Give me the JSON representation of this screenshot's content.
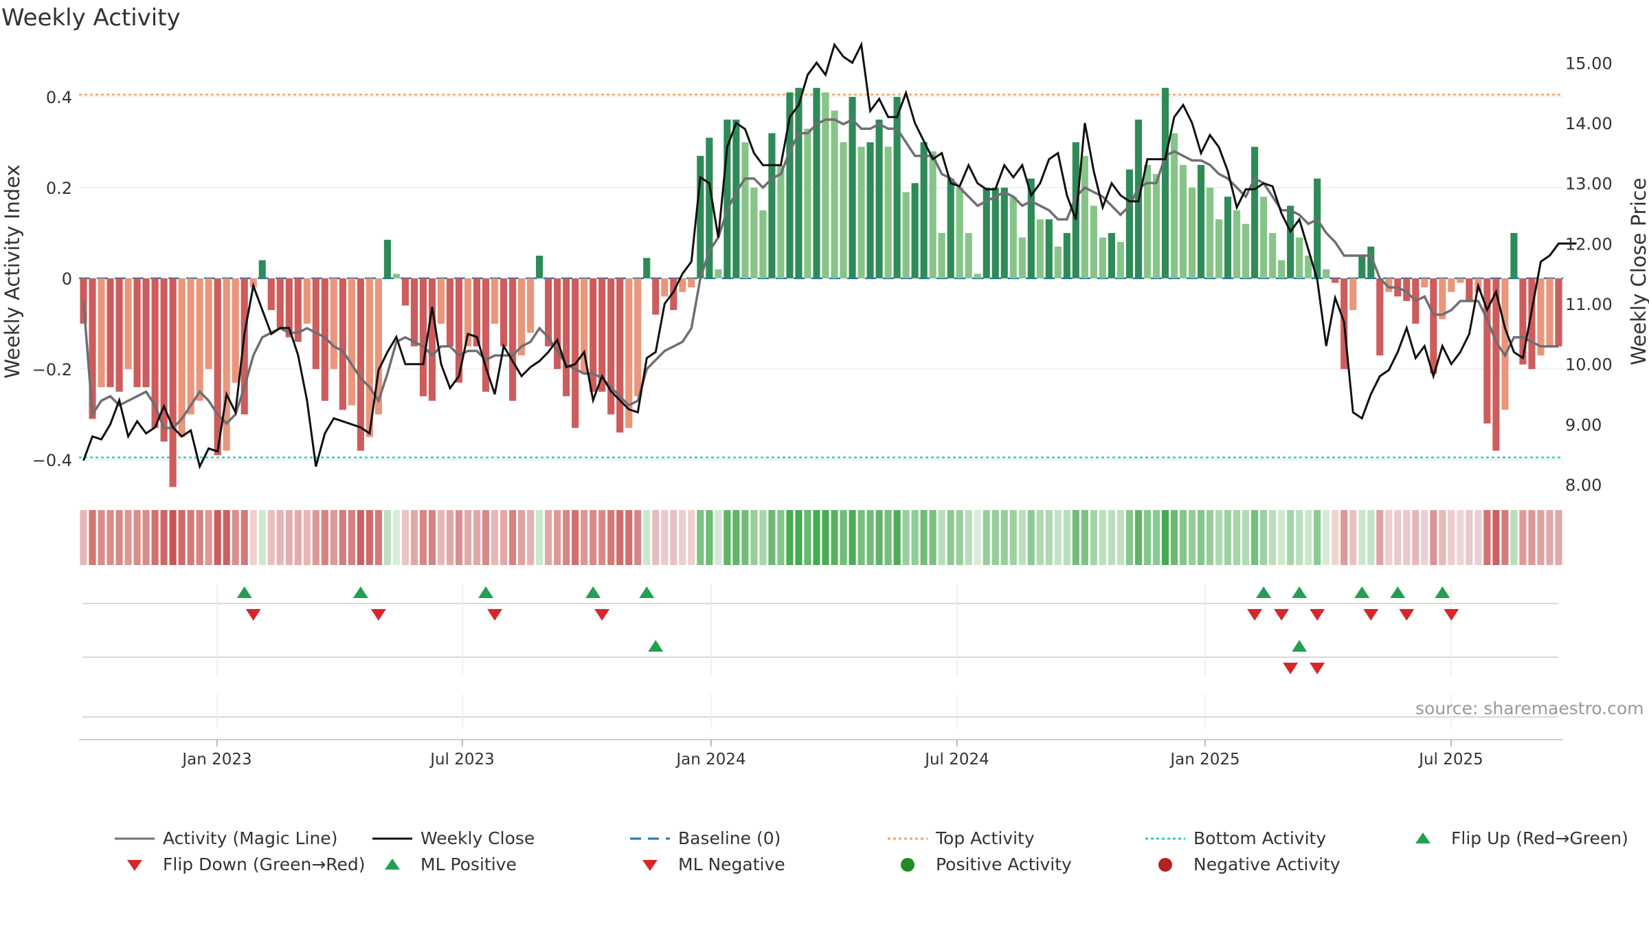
{
  "title": "Weekly Activity",
  "source": "source: sharemaestro.com",
  "colors": {
    "pos_dark": "#2e8b57",
    "pos_light": "#86c487",
    "neg_dark": "#cd5c5c",
    "neg_light": "#e9967a",
    "magic_line": "#6e6e74",
    "close": "#111111",
    "baseline": "#1f77b4",
    "top": "#f0a060",
    "bottom": "#30c9c4",
    "flip_up": "#22a050",
    "flip_down": "#d62728"
  },
  "chart_data": {
    "type": "bar",
    "x_label_ticks": [
      "Jan 2023",
      "Jul 2023",
      "Jan 2024",
      "Jul 2024",
      "Jan 2025",
      "Jul 2025"
    ],
    "y_left": {
      "label": "Weekly Activity Index",
      "ticks": [
        "0.4",
        "0.2",
        "0",
        "−0.2",
        "−0.4"
      ],
      "range": [
        -0.47,
        0.5
      ]
    },
    "y_right": {
      "label": "Weekly Close Price",
      "ticks": [
        "15.00",
        "14.00",
        "13.00",
        "12.00",
        "11.00",
        "10.00",
        "9.00",
        "8.00"
      ],
      "range": [
        8.0,
        15.3
      ]
    },
    "top_activity": 0.405,
    "bottom_activity": -0.395,
    "activity": [
      -0.1,
      -0.31,
      -0.24,
      -0.24,
      -0.25,
      -0.2,
      -0.24,
      -0.24,
      -0.33,
      -0.36,
      -0.46,
      -0.35,
      -0.3,
      -0.27,
      -0.2,
      -0.39,
      -0.38,
      -0.23,
      -0.3,
      -0.02,
      0.04,
      -0.07,
      -0.11,
      -0.13,
      -0.14,
      -0.1,
      -0.2,
      -0.27,
      -0.2,
      -0.29,
      -0.28,
      -0.38,
      -0.35,
      -0.3,
      0.085,
      0.01,
      -0.06,
      -0.15,
      -0.26,
      -0.27,
      -0.1,
      -0.15,
      -0.23,
      -0.15,
      -0.15,
      -0.25,
      -0.1,
      -0.15,
      -0.27,
      -0.17,
      -0.12,
      0.05,
      -0.15,
      -0.2,
      -0.26,
      -0.33,
      -0.21,
      -0.25,
      -0.25,
      -0.3,
      -0.34,
      -0.33,
      -0.26,
      0.045,
      -0.08,
      -0.04,
      -0.07,
      -0.03,
      -0.02,
      0.27,
      0.31,
      0.02,
      0.35,
      0.35,
      0.3,
      0.2,
      0.15,
      0.32,
      0.25,
      0.41,
      0.42,
      0.33,
      0.42,
      0.41,
      0.37,
      0.3,
      0.4,
      0.29,
      0.3,
      0.35,
      0.29,
      0.4,
      0.19,
      0.21,
      0.3,
      0.28,
      0.1,
      0.22,
      0.2,
      0.1,
      0.01,
      0.2,
      0.2,
      0.2,
      0.18,
      0.09,
      0.22,
      0.13,
      0.13,
      0.07,
      0.1,
      0.3,
      0.27,
      0.16,
      0.09,
      0.1,
      0.08,
      0.24,
      0.35,
      0.25,
      0.23,
      0.42,
      0.32,
      0.25,
      0.2,
      0.25,
      0.2,
      0.13,
      0.18,
      0.15,
      0.12,
      0.29,
      0.18,
      0.1,
      0.04,
      0.16,
      0.09,
      0.05,
      0.22,
      0.02,
      -0.01,
      -0.2,
      -0.07,
      0.05,
      0.07,
      -0.17,
      -0.03,
      -0.04,
      -0.05,
      -0.1,
      -0.02,
      -0.21,
      -0.09,
      -0.03,
      -0.01,
      -0.05,
      -0.03,
      -0.32,
      -0.38,
      -0.29,
      0.1,
      -0.19,
      -0.2,
      -0.17,
      -0.15,
      -0.15
    ],
    "magic_line": [
      -0.05,
      -0.3,
      -0.27,
      -0.26,
      -0.28,
      -0.27,
      -0.26,
      -0.25,
      -0.28,
      -0.33,
      -0.33,
      -0.31,
      -0.28,
      -0.25,
      -0.27,
      -0.3,
      -0.32,
      -0.3,
      -0.24,
      -0.17,
      -0.13,
      -0.12,
      -0.11,
      -0.12,
      -0.12,
      -0.11,
      -0.12,
      -0.13,
      -0.15,
      -0.16,
      -0.19,
      -0.22,
      -0.24,
      -0.27,
      -0.21,
      -0.14,
      -0.13,
      -0.14,
      -0.15,
      -0.17,
      -0.15,
      -0.15,
      -0.17,
      -0.16,
      -0.16,
      -0.18,
      -0.17,
      -0.17,
      -0.17,
      -0.15,
      -0.14,
      -0.11,
      -0.13,
      -0.16,
      -0.19,
      -0.2,
      -0.21,
      -0.21,
      -0.22,
      -0.24,
      -0.26,
      -0.28,
      -0.27,
      -0.2,
      -0.18,
      -0.16,
      -0.15,
      -0.14,
      -0.11,
      0.0,
      0.06,
      0.09,
      0.15,
      0.19,
      0.22,
      0.22,
      0.2,
      0.22,
      0.23,
      0.28,
      0.32,
      0.32,
      0.34,
      0.35,
      0.35,
      0.34,
      0.35,
      0.33,
      0.33,
      0.34,
      0.33,
      0.33,
      0.3,
      0.27,
      0.27,
      0.27,
      0.23,
      0.22,
      0.2,
      0.18,
      0.16,
      0.17,
      0.18,
      0.19,
      0.18,
      0.16,
      0.17,
      0.16,
      0.15,
      0.13,
      0.13,
      0.18,
      0.2,
      0.19,
      0.18,
      0.16,
      0.14,
      0.16,
      0.2,
      0.21,
      0.21,
      0.27,
      0.28,
      0.27,
      0.26,
      0.26,
      0.25,
      0.23,
      0.22,
      0.2,
      0.18,
      0.22,
      0.21,
      0.18,
      0.15,
      0.15,
      0.14,
      0.12,
      0.13,
      0.1,
      0.08,
      0.05,
      0.05,
      0.05,
      0.05,
      0.0,
      -0.02,
      -0.02,
      -0.03,
      -0.05,
      -0.04,
      -0.08,
      -0.08,
      -0.07,
      -0.05,
      -0.05,
      -0.05,
      -0.09,
      -0.14,
      -0.17,
      -0.13,
      -0.13,
      -0.14,
      -0.15,
      -0.15,
      -0.15
    ],
    "weekly_close": [
      8.4,
      8.8,
      8.75,
      9.0,
      9.4,
      8.8,
      9.05,
      8.85,
      8.95,
      9.3,
      8.95,
      8.8,
      8.9,
      8.3,
      8.6,
      8.55,
      9.5,
      9.2,
      10.5,
      11.3,
      10.9,
      10.5,
      10.6,
      10.6,
      10.15,
      9.4,
      8.3,
      8.85,
      9.1,
      9.05,
      9.0,
      8.95,
      8.85,
      9.9,
      10.2,
      10.45,
      10.0,
      10.0,
      10.0,
      10.95,
      10.0,
      9.6,
      9.8,
      10.5,
      10.45,
      9.95,
      9.5,
      10.3,
      10.05,
      9.8,
      9.95,
      10.05,
      10.2,
      10.4,
      9.95,
      10.0,
      10.2,
      9.4,
      9.8,
      9.55,
      9.4,
      9.25,
      9.2,
      10.1,
      10.2,
      11.0,
      11.2,
      11.5,
      11.7,
      13.1,
      13.0,
      12.1,
      13.6,
      14.0,
      13.9,
      13.5,
      13.3,
      13.3,
      13.3,
      14.1,
      14.3,
      14.8,
      15.0,
      14.8,
      15.3,
      15.1,
      15.0,
      15.3,
      14.2,
      14.4,
      14.1,
      14.1,
      14.5,
      14.0,
      13.7,
      13.4,
      13.5,
      13.0,
      12.95,
      13.3,
      13.0,
      12.9,
      12.9,
      13.3,
      13.1,
      13.3,
      12.8,
      13.0,
      13.4,
      13.5,
      12.8,
      12.4,
      14.0,
      13.2,
      12.6,
      13.0,
      12.8,
      12.7,
      12.7,
      13.4,
      13.4,
      13.4,
      14.1,
      14.3,
      14.0,
      13.5,
      13.8,
      13.6,
      13.2,
      12.6,
      12.9,
      12.9,
      13.0,
      12.95,
      12.5,
      12.2,
      12.4,
      11.9,
      11.4,
      10.3,
      11.1,
      10.7,
      9.2,
      9.1,
      9.5,
      9.8,
      9.9,
      10.2,
      10.6,
      10.1,
      10.3,
      9.8,
      10.3,
      10.0,
      10.2,
      10.5,
      11.3,
      10.9,
      11.2,
      10.6,
      10.2,
      10.1,
      10.9,
      11.7,
      11.8,
      12.0,
      12.0,
      12.0
    ],
    "series": [
      {
        "name": "Activity (Magic Line)"
      },
      {
        "name": "Weekly Close"
      },
      {
        "name": "Baseline (0)"
      },
      {
        "name": "Top Activity"
      },
      {
        "name": "Bottom Activity"
      },
      {
        "name": "Flip Up (Red→Green)"
      },
      {
        "name": "Flip Down (Green→Red)"
      },
      {
        "name": "ML Positive"
      },
      {
        "name": "ML Negative"
      },
      {
        "name": "Positive Activity"
      },
      {
        "name": "Negative Activity"
      }
    ],
    "flip_up_weeks": [
      18,
      31,
      45,
      57,
      63,
      132,
      136,
      143,
      147,
      152
    ],
    "flip_down_weeks": [
      19,
      33,
      46,
      58,
      131,
      134,
      138,
      144,
      148,
      153
    ],
    "ml_positive_weeks": [
      64,
      136
    ],
    "ml_negative_weeks": [
      135,
      138
    ],
    "legend_position": "bottom"
  }
}
